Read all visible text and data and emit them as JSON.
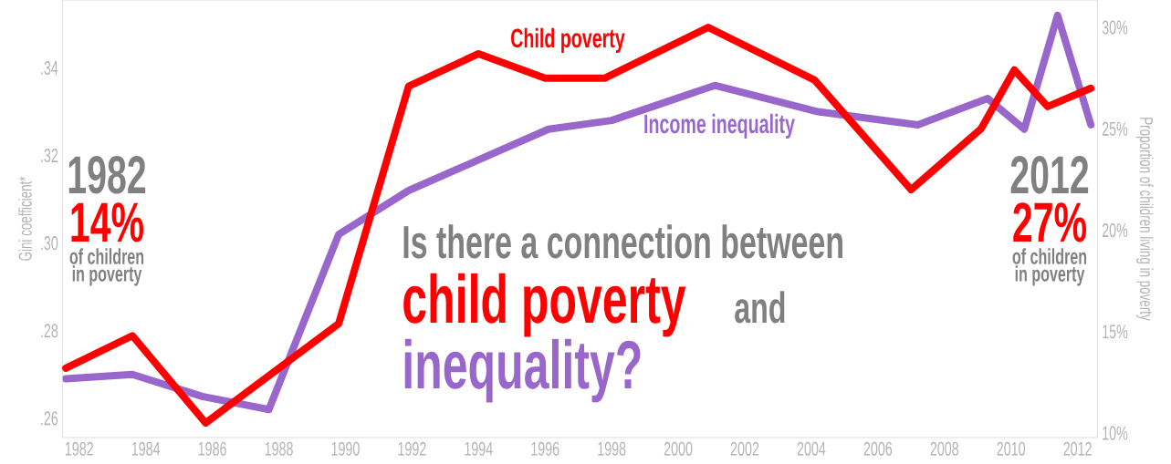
{
  "chart_data": {
    "type": "line",
    "title": "Is there a connection between",
    "ylabel": "Gini coefficient*",
    "y2label": "Proportion of children living in poverty",
    "series": [
      {
        "name": "Child poverty",
        "color": "#ff0000",
        "axis": "y2",
        "x": [
          1981.6,
          1983.6,
          1985.8,
          1989.8,
          1991.9,
          1994.0,
          1996.0,
          1997.8,
          2000.9,
          2004.1,
          2007.0,
          2009.1,
          2010.1,
          2011.1,
          2012.4
        ],
        "values": [
          13.2,
          14.8,
          10.5,
          15.4,
          27.1,
          28.7,
          27.5,
          27.5,
          30.0,
          27.4,
          22.0,
          25.0,
          27.9,
          26.1,
          27.0
        ]
      },
      {
        "name": "Income inequality",
        "color": "#9966cc",
        "x": [
          1981.6,
          1983.6,
          1985.7,
          1987.7,
          1989.8,
          1991.9,
          1994.0,
          1996.1,
          1998.0,
          2001.1,
          2004.2,
          2007.2,
          2009.3,
          2010.4,
          2011.4,
          2012.4
        ],
        "values": [
          0.269,
          0.27,
          0.265,
          0.262,
          0.302,
          0.312,
          0.319,
          0.326,
          0.328,
          0.336,
          0.33,
          0.327,
          0.333,
          0.326,
          0.352,
          0.327
        ]
      }
    ],
    "xlim": [
      1981.5,
      2012.6
    ],
    "xticks": [
      1982,
      1984,
      1986,
      1988,
      1990,
      1992,
      1994,
      1996,
      1998,
      2000,
      2002,
      2004,
      2006,
      2008,
      2010,
      2012
    ],
    "ylim": [
      0.2556,
      0.3555
    ],
    "yticks": [
      {
        "value": 0.26,
        "label": ".26"
      },
      {
        "value": 0.28,
        "label": ".28"
      },
      {
        "value": 0.3,
        "label": ".30"
      },
      {
        "value": 0.32,
        "label": ".32"
      },
      {
        "value": 0.34,
        "label": ".34"
      }
    ],
    "y2lim": [
      9.78,
      31.35
    ],
    "y2ticks": [
      {
        "value": 10,
        "label": "10%"
      },
      {
        "value": 15,
        "label": "15%"
      },
      {
        "value": 20,
        "label": "20%"
      },
      {
        "value": 25,
        "label": "25%"
      },
      {
        "value": 30,
        "label": "30%"
      }
    ],
    "annotations": [
      "child poverty",
      "and",
      "inequality?",
      "1982",
      "14%",
      "of children in poverty",
      "2012",
      "27%",
      "of children in poverty"
    ]
  }
}
